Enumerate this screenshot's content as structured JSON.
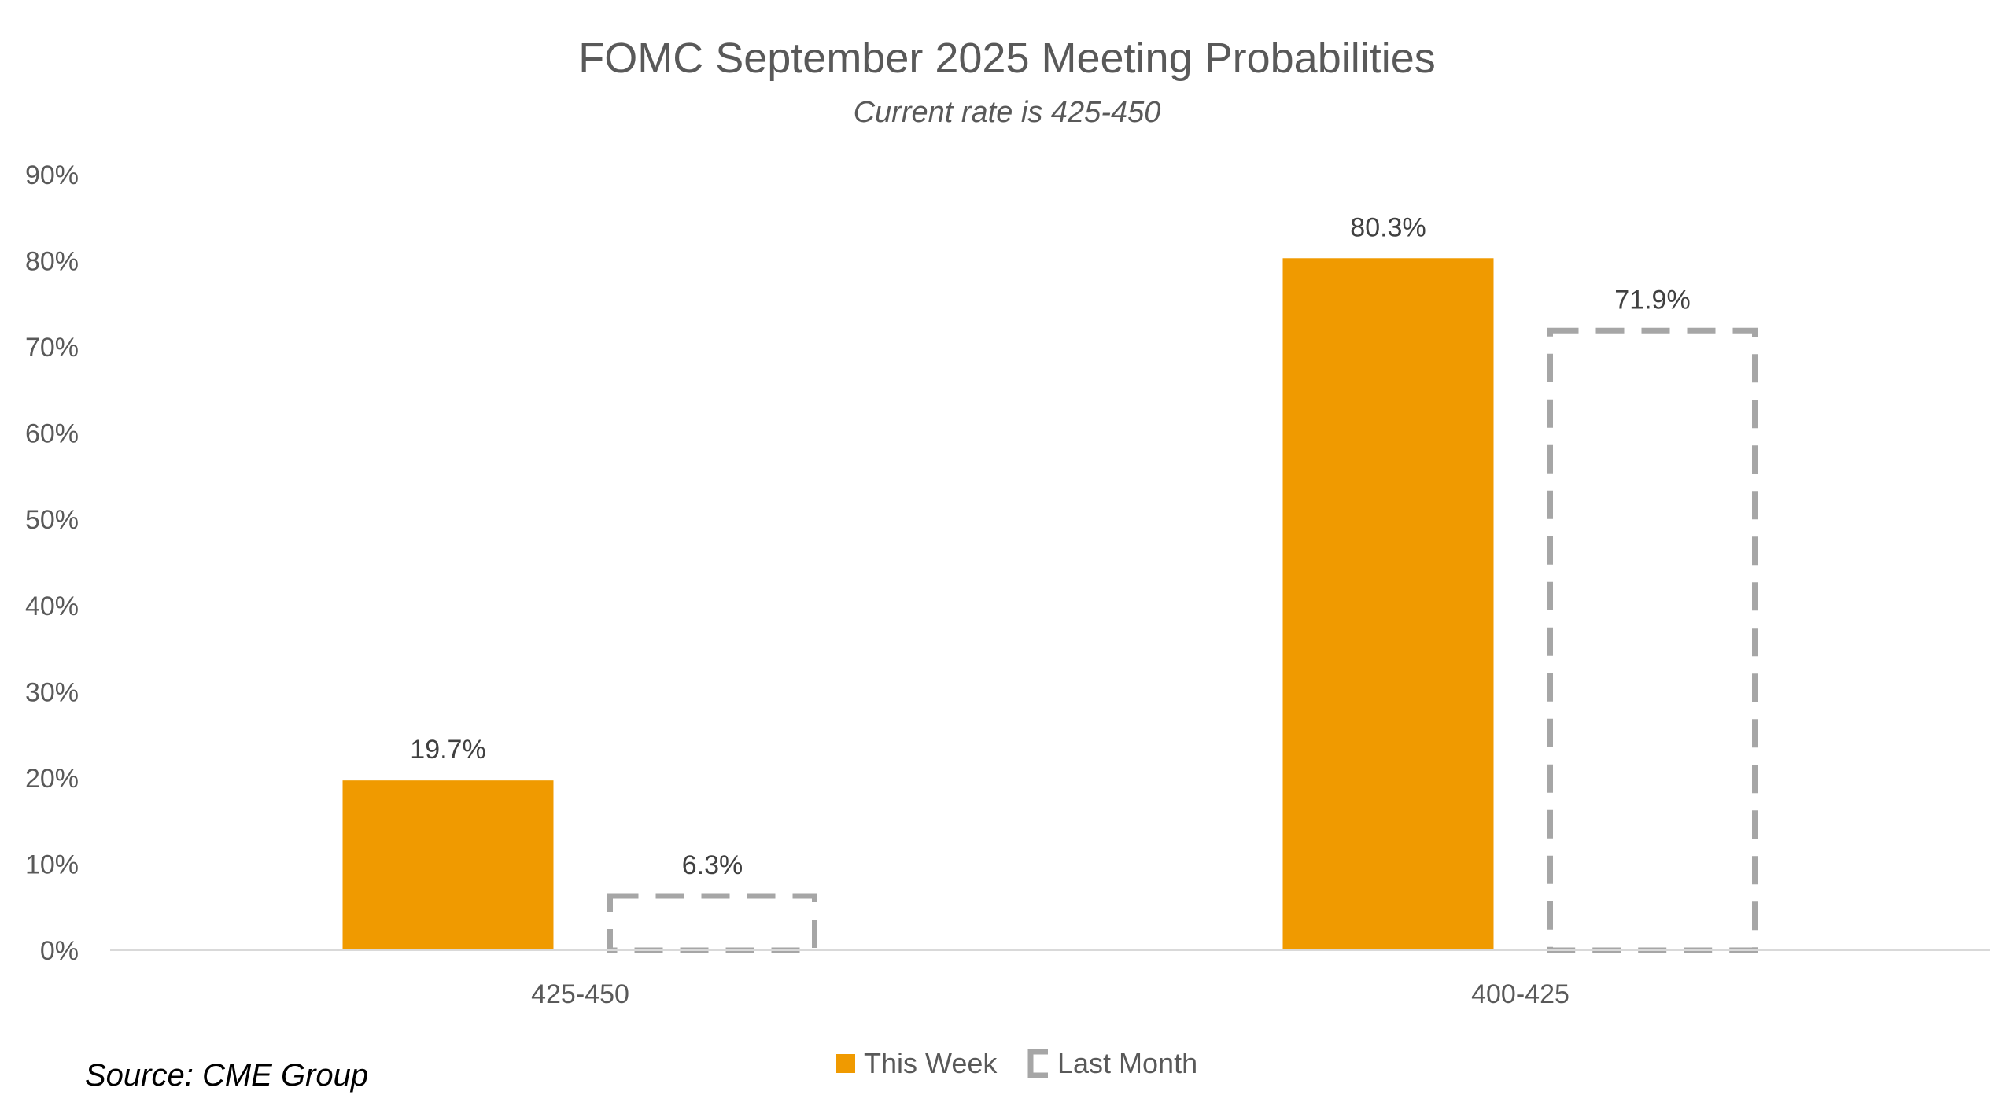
{
  "colors": {
    "this_week": "#F09A00",
    "last_month": "#A6A6A6",
    "axis": "#D9D9D9",
    "text": "#595959"
  },
  "source": "Source: CME Group",
  "chart_data": {
    "type": "bar",
    "title": "FOMC September 2025 Meeting Probabilities",
    "subtitle": "Current rate is 425-450",
    "xlabel": "",
    "ylabel": "",
    "categories": [
      "425-450",
      "400-425"
    ],
    "series": [
      {
        "name": "This Week",
        "values": [
          19.7,
          80.3
        ],
        "labels": [
          "19.7%",
          "80.3%"
        ],
        "style": "solid"
      },
      {
        "name": "Last Month",
        "values": [
          6.3,
          71.9
        ],
        "labels": [
          "6.3%",
          "71.9%"
        ],
        "style": "dashed-outline"
      }
    ],
    "ylim": [
      0,
      90
    ],
    "yticks": [
      0,
      10,
      20,
      30,
      40,
      50,
      60,
      70,
      80,
      90
    ],
    "ytick_labels": [
      "0%",
      "10%",
      "20%",
      "30%",
      "40%",
      "50%",
      "60%",
      "70%",
      "80%",
      "90%"
    ],
    "grid": false,
    "legend_position": "bottom"
  }
}
